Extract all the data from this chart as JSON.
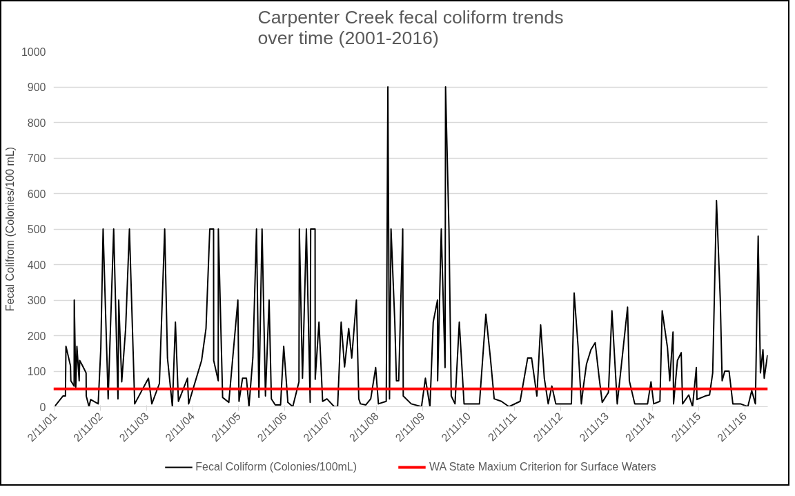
{
  "chart_data": {
    "type": "line",
    "title": "Carpenter Creek fecal coliform trends\nover time (2001-2016)",
    "ylabel": "Fecal Colifrom (Colonies/100 mL)",
    "xlim": [
      "2001-02-01",
      "2016-08-12"
    ],
    "ylim": [
      0,
      1000
    ],
    "yticks": [
      0,
      100,
      200,
      300,
      400,
      500,
      600,
      700,
      800,
      900,
      1000
    ],
    "xticks": [
      {
        "value": "2001-02-11",
        "label": "2/11/01"
      },
      {
        "value": "2002-02-11",
        "label": "2/11/02"
      },
      {
        "value": "2003-02-11",
        "label": "2/11/03"
      },
      {
        "value": "2004-02-11",
        "label": "2/11/04"
      },
      {
        "value": "2005-02-11",
        "label": "2/11/05"
      },
      {
        "value": "2006-02-11",
        "label": "2/11/06"
      },
      {
        "value": "2007-02-11",
        "label": "2/11/07"
      },
      {
        "value": "2008-02-11",
        "label": "2/11/08"
      },
      {
        "value": "2009-02-11",
        "label": "2/11/09"
      },
      {
        "value": "2010-02-11",
        "label": "2/11/10"
      },
      {
        "value": "2011-02-11",
        "label": "2/11/11"
      },
      {
        "value": "2012-02-11",
        "label": "2/11/12"
      },
      {
        "value": "2013-02-11",
        "label": "2/11/13"
      },
      {
        "value": "2014-02-11",
        "label": "2/11/14"
      },
      {
        "value": "2015-02-11",
        "label": "2/11/15"
      },
      {
        "value": "2016-02-11",
        "label": "2/11/16"
      }
    ],
    "grid": "y",
    "legend": "bottom",
    "series": [
      {
        "name": "Fecal Coliform (Colonies/100mL)",
        "color": "#000000",
        "x": [
          "2001-02-09",
          "2001-04-17",
          "2001-05-07",
          "2001-05-11",
          "2001-06-16",
          "2001-06-19",
          "2001-07-15",
          "2001-07-16",
          "2001-07-28",
          "2001-08-06",
          "2001-08-24",
          "2001-08-28",
          "2001-09-24",
          "2001-10-18",
          "2001-10-19",
          "2001-11-10",
          "2001-11-23",
          "2002-01-22",
          "2002-02-12",
          "2002-03-02",
          "2002-04-11",
          "2002-05-25",
          "2002-06-28",
          "2002-07-04",
          "2002-07-28",
          "2002-08-28",
          "2002-09-27",
          "2002-11-08",
          "2003-02-25",
          "2003-03-24",
          "2003-05-23",
          "2003-07-04",
          "2003-07-26",
          "2003-09-03",
          "2003-09-27",
          "2003-10-21",
          "2004-01-01",
          "2004-01-10",
          "2004-04-22",
          "2004-05-27",
          "2004-06-26",
          "2004-07-26",
          "2004-07-27",
          "2004-09-01",
          "2004-09-02",
          "2004-10-06",
          "2004-11-24",
          "2005-02-04",
          "2005-02-13",
          "2005-03-13",
          "2005-04-13",
          "2005-05-03",
          "2005-06-03",
          "2005-07-02",
          "2005-07-21",
          "2005-08-15",
          "2005-09-11",
          "2005-10-10",
          "2005-10-28",
          "2005-11-28",
          "2006-01-09",
          "2006-02-03",
          "2006-03-08",
          "2006-04-16",
          "2006-06-04",
          "2006-06-07",
          "2006-07-02",
          "2006-08-02",
          "2006-09-01",
          "2006-09-05",
          "2006-10-10",
          "2006-10-11",
          "2006-11-10",
          "2006-12-09",
          "2007-01-12",
          "2007-03-11",
          "2007-04-07",
          "2007-05-05",
          "2007-06-01",
          "2007-07-04",
          "2007-07-28",
          "2007-09-03",
          "2007-09-22",
          "2007-10-05",
          "2007-11-17",
          "2007-12-26",
          "2008-02-03",
          "2008-02-25",
          "2008-04-27",
          "2008-05-10",
          "2008-05-23",
          "2008-06-04",
          "2008-07-04",
          "2008-07-17",
          "2008-08-04",
          "2008-09-05",
          "2008-09-09",
          "2008-11-11",
          "2009-02-01",
          "2009-03-04",
          "2009-04-09",
          "2009-05-05",
          "2009-06-08",
          "2009-06-09",
          "2009-07-08",
          "2009-08-07",
          "2009-08-11",
          "2009-09-07",
          "2009-09-25",
          "2009-10-25",
          "2009-11-28",
          "2010-01-05",
          "2010-05-07",
          "2010-06-27",
          "2010-08-02",
          "2010-09-01",
          "2010-10-28",
          "2010-12-28",
          "2011-03-26",
          "2011-05-25",
          "2011-06-25",
          "2011-08-06",
          "2011-09-05",
          "2011-10-04",
          "2011-11-04",
          "2011-12-03",
          "2012-01-03",
          "2012-05-06",
          "2012-05-28",
          "2012-06-28",
          "2012-07-24",
          "2012-08-09",
          "2012-09-03",
          "2012-10-08",
          "2012-11-11",
          "2012-12-13",
          "2013-01-06",
          "2013-02-24",
          "2013-03-24",
          "2013-05-05",
          "2013-06-23",
          "2013-07-26",
          "2013-08-09",
          "2013-09-21",
          "2014-01-01",
          "2014-01-28",
          "2014-02-19",
          "2014-04-09",
          "2014-04-27",
          "2014-06-08",
          "2014-06-26",
          "2014-07-22",
          "2014-07-26",
          "2014-08-26",
          "2014-09-25",
          "2014-10-06",
          "2014-11-24",
          "2014-12-24",
          "2015-01-23",
          "2015-01-28",
          "2015-04-03",
          "2015-05-08",
          "2015-06-02",
          "2015-07-02",
          "2015-08-01",
          "2015-08-16",
          "2015-09-06",
          "2015-10-10",
          "2015-11-09",
          "2016-01-08",
          "2016-03-07",
          "2016-04-07",
          "2016-05-06",
          "2016-05-28",
          "2016-06-15",
          "2016-07-05",
          "2016-07-15",
          "2016-08-10"
        ],
        "values": [
          0,
          30,
          30,
          170,
          115,
          73,
          58,
          300,
          55,
          170,
          73,
          130,
          112,
          95,
          30,
          0,
          20,
          8,
          166,
          500,
          22,
          500,
          22,
          300,
          70,
          220,
          500,
          8,
          80,
          8,
          65,
          500,
          137,
          0,
          238,
          15,
          80,
          8,
          130,
          220,
          500,
          500,
          130,
          73,
          500,
          26,
          12,
          300,
          15,
          80,
          80,
          0,
          138,
          500,
          26,
          500,
          30,
          300,
          22,
          5,
          5,
          170,
          12,
          0,
          70,
          500,
          80,
          500,
          12,
          500,
          500,
          77,
          238,
          15,
          22,
          0,
          0,
          238,
          112,
          220,
          137,
          300,
          22,
          8,
          5,
          22,
          110,
          8,
          15,
          900,
          22,
          500,
          238,
          73,
          73,
          500,
          30,
          8,
          0,
          80,
          0,
          238,
          300,
          73,
          500,
          110,
          900,
          500,
          30,
          8,
          238,
          8,
          8,
          260,
          137,
          22,
          15,
          0,
          15,
          137,
          137,
          30,
          230,
          80,
          8,
          58,
          8,
          8,
          320,
          170,
          8,
          55,
          120,
          160,
          180,
          80,
          12,
          40,
          270,
          8,
          170,
          280,
          73,
          8,
          8,
          70,
          8,
          15,
          270,
          166,
          73,
          210,
          8,
          130,
          152,
          8,
          33,
          0,
          110,
          20,
          30,
          33,
          95,
          580,
          303,
          73,
          100,
          100,
          8,
          8,
          0,
          45,
          8,
          480,
          95,
          160,
          80,
          145
        ]
      },
      {
        "name": "WA State Maxium Criterion for Surface Waters",
        "color": "#ff0000",
        "x": [
          "2001-02-01",
          "2016-08-12"
        ],
        "values": [
          50,
          50
        ]
      }
    ]
  }
}
